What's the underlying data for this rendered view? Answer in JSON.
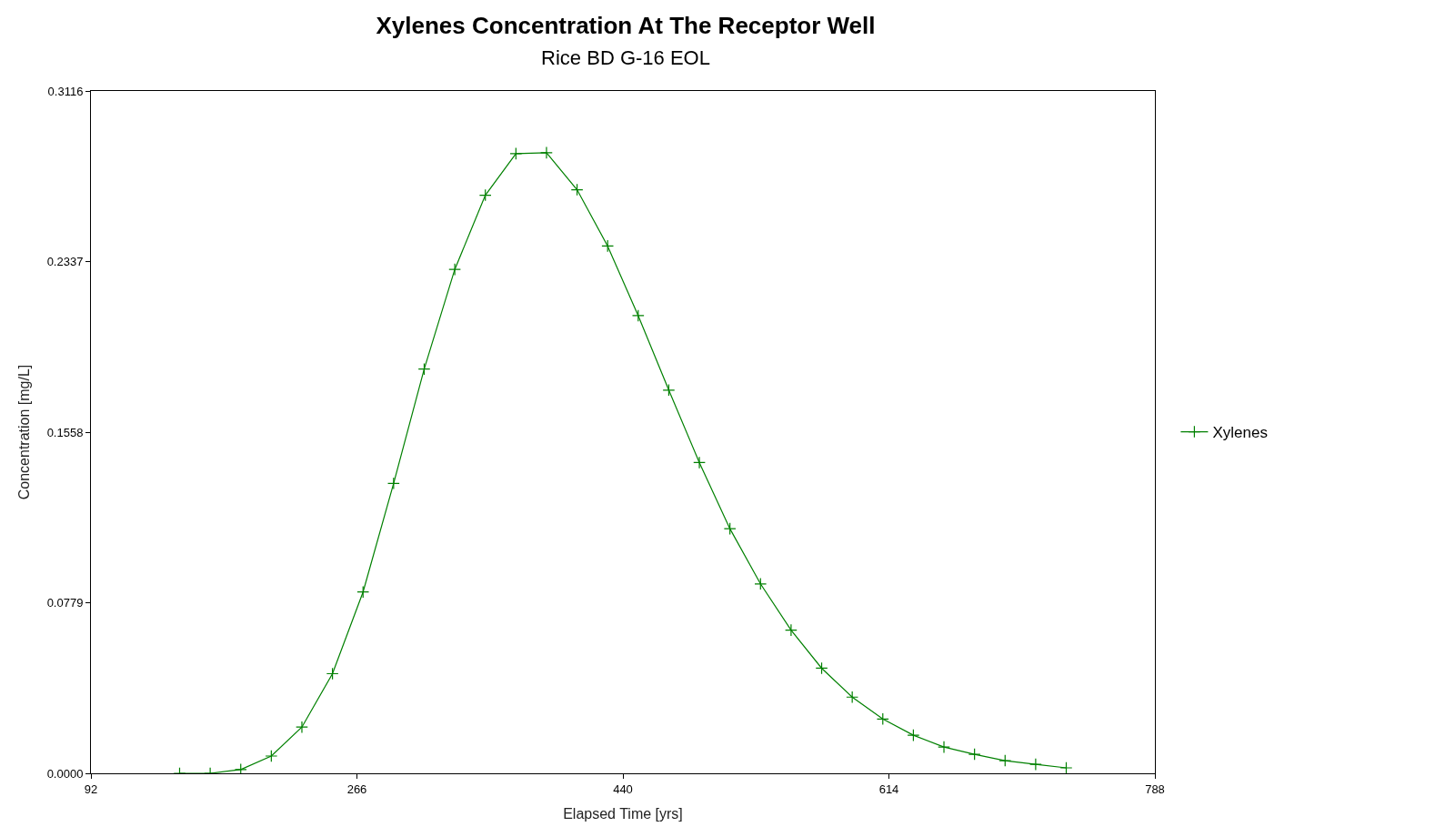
{
  "chart_data": {
    "type": "line",
    "title": "Xylenes Concentration At The Receptor Well",
    "subtitle": "Rice BD G-16 EOL",
    "xlabel": "Elapsed Time [yrs]",
    "ylabel": "Concentration [mg/L]",
    "x": [
      150,
      170,
      190,
      210,
      230,
      250,
      270,
      290,
      310,
      330,
      350,
      370,
      390,
      410,
      430,
      450,
      470,
      490,
      510,
      530,
      550,
      570,
      590,
      610,
      630,
      650,
      670,
      690,
      710,
      730
    ],
    "series": [
      {
        "name": "Xylenes",
        "color": "#008000",
        "values": [
          0,
          0,
          0.0017,
          0.0079,
          0.0211,
          0.0455,
          0.0828,
          0.1324,
          0.1846,
          0.2301,
          0.264,
          0.283,
          0.2834,
          0.2665,
          0.2408,
          0.209,
          0.175,
          0.1419,
          0.1117,
          0.0865,
          0.0654,
          0.048,
          0.0348,
          0.0248,
          0.0174,
          0.012,
          0.0087,
          0.0058,
          0.0041,
          0.0025
        ]
      }
    ],
    "xlim": [
      92,
      788
    ],
    "xticks": [
      92,
      266,
      440,
      614,
      788
    ],
    "ylim": [
      0,
      0.3116
    ],
    "yticks": [
      {
        "value": 0,
        "label": "0.0000"
      },
      0.0779,
      0.1558,
      0.2337,
      0.3116
    ],
    "legend": "right",
    "marker": "cross",
    "line_style": "solid"
  }
}
